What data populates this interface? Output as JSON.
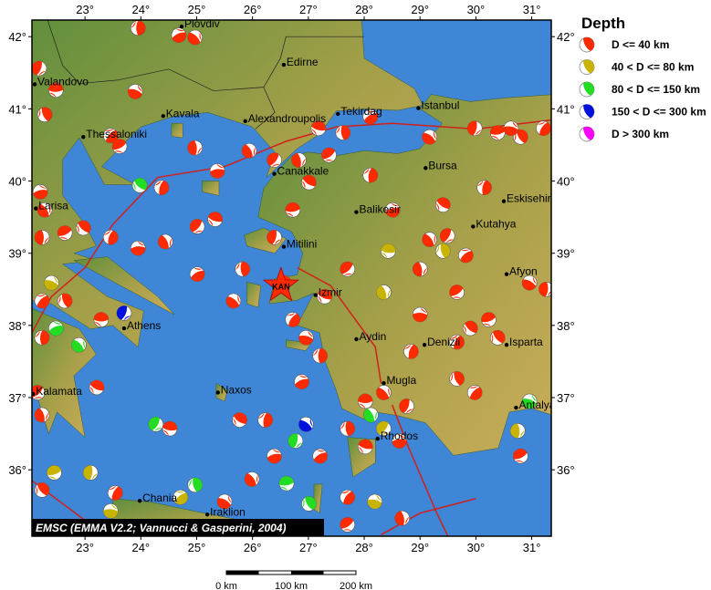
{
  "map": {
    "lon_range": [
      22.05,
      31.35
    ],
    "lat_range": [
      35.08,
      42.23
    ],
    "lon_ticks": [
      23,
      24,
      25,
      26,
      27,
      28,
      29,
      30,
      31
    ],
    "lat_ticks": [
      36,
      37,
      38,
      39,
      40,
      41,
      42
    ],
    "tick_suffix": "°",
    "colors": {
      "sea": "#3f86d6",
      "land_low": "#5f8f3c",
      "land_high": "#c9ad5a",
      "fault": "#d0201a",
      "border": "#222222"
    }
  },
  "legend": {
    "title": "Depth",
    "items": [
      {
        "label": "D <= 40 km",
        "color": "#ff2a00"
      },
      {
        "label": "40 < D <= 80 km",
        "color": "#c8b400"
      },
      {
        "label": "80 < D <= 150 km",
        "color": "#22dd22"
      },
      {
        "label": "150 < D <= 300 km",
        "color": "#0010dd"
      },
      {
        "label": "D > 300 km",
        "color": "#ff00ff"
      }
    ]
  },
  "caption": "EMSC (EMMA V2.2; Vannucci & Gasperini, 2004)",
  "scale_bar": {
    "labels": [
      "0 km",
      "100 km",
      "200 km"
    ]
  },
  "epicenter": {
    "label": "KAN",
    "lon": 26.51,
    "lat": 38.55,
    "color": "#ff2a00"
  },
  "cities": [
    {
      "name": "Plovdiv",
      "lon": 24.73,
      "lat": 42.14
    },
    {
      "name": "Edirne",
      "lon": 26.56,
      "lat": 41.61
    },
    {
      "name": "Valandovo",
      "lon": 22.1,
      "lat": 41.34
    },
    {
      "name": "Kavala",
      "lon": 24.4,
      "lat": 40.9
    },
    {
      "name": "Alexandroupolis",
      "lon": 25.87,
      "lat": 40.83
    },
    {
      "name": "Tekirdag",
      "lon": 27.53,
      "lat": 40.93
    },
    {
      "name": "Istanbul",
      "lon": 28.97,
      "lat": 41.01
    },
    {
      "name": "Thessaloniki",
      "lon": 22.97,
      "lat": 40.61
    },
    {
      "name": "Bursa",
      "lon": 29.1,
      "lat": 40.18
    },
    {
      "name": "Canakkale",
      "lon": 26.39,
      "lat": 40.1
    },
    {
      "name": "Eskisehir",
      "lon": 30.5,
      "lat": 39.72
    },
    {
      "name": "Larisa",
      "lon": 22.12,
      "lat": 39.62
    },
    {
      "name": "Balikesir",
      "lon": 27.86,
      "lat": 39.57
    },
    {
      "name": "Kutahya",
      "lon": 29.95,
      "lat": 39.37
    },
    {
      "name": "Mitilini",
      "lon": 26.56,
      "lat": 39.09
    },
    {
      "name": "Afyon",
      "lon": 30.55,
      "lat": 38.71
    },
    {
      "name": "Izmir",
      "lon": 27.13,
      "lat": 38.42
    },
    {
      "name": "Athens",
      "lon": 23.7,
      "lat": 37.96
    },
    {
      "name": "Aydin",
      "lon": 27.86,
      "lat": 37.81
    },
    {
      "name": "Denizli",
      "lon": 29.08,
      "lat": 37.73
    },
    {
      "name": "Isparta",
      "lon": 30.55,
      "lat": 37.73
    },
    {
      "name": "Mugla",
      "lon": 28.35,
      "lat": 37.2
    },
    {
      "name": "Naxos",
      "lon": 25.38,
      "lat": 37.07
    },
    {
      "name": "Kalamata",
      "lon": 22.07,
      "lat": 37.05
    },
    {
      "name": "Antalya",
      "lon": 30.72,
      "lat": 36.86
    },
    {
      "name": "Rhodos",
      "lon": 28.24,
      "lat": 36.43
    },
    {
      "name": "Chania",
      "lon": 23.98,
      "lat": 35.57
    },
    {
      "name": "Iraklion",
      "lon": 25.19,
      "lat": 35.38
    }
  ],
  "events": [
    [
      23.95,
      42.12,
      1
    ],
    [
      24.68,
      42.02,
      1
    ],
    [
      24.97,
      41.99,
      1
    ],
    [
      22.18,
      41.56,
      1
    ],
    [
      22.48,
      41.26,
      1
    ],
    [
      22.28,
      40.92,
      1
    ],
    [
      23.46,
      40.63,
      1
    ],
    [
      23.9,
      41.24,
      1
    ],
    [
      24.97,
      40.46,
      1
    ],
    [
      23.62,
      40.48,
      1
    ],
    [
      23.98,
      39.94,
      3
    ],
    [
      24.37,
      39.91,
      1
    ],
    [
      25.37,
      40.14,
      1
    ],
    [
      25.94,
      40.42,
      1
    ],
    [
      26.39,
      40.29,
      1
    ],
    [
      27.18,
      40.73,
      1
    ],
    [
      27.62,
      40.67,
      1
    ],
    [
      28.11,
      40.89,
      1
    ],
    [
      29.17,
      40.61,
      1
    ],
    [
      29.98,
      40.73,
      1
    ],
    [
      30.39,
      40.67,
      1
    ],
    [
      30.8,
      40.61,
      1
    ],
    [
      31.21,
      40.73,
      1
    ],
    [
      30.63,
      40.73,
      1
    ],
    [
      26.83,
      40.29,
      1
    ],
    [
      27.37,
      40.36,
      1
    ],
    [
      27.01,
      39.98,
      1
    ],
    [
      28.11,
      40.08,
      1
    ],
    [
      28.51,
      39.6,
      1
    ],
    [
      29.17,
      39.19,
      1
    ],
    [
      29.49,
      39.24,
      1
    ],
    [
      28.43,
      39.03,
      2
    ],
    [
      29.41,
      39.03,
      2
    ],
    [
      29.82,
      38.97,
      1
    ],
    [
      30.96,
      38.59,
      1
    ],
    [
      31.26,
      38.5,
      1
    ],
    [
      30.23,
      38.08,
      1
    ],
    [
      30.39,
      37.83,
      1
    ],
    [
      29.66,
      37.77,
      1
    ],
    [
      29.0,
      38.15,
      1
    ],
    [
      28.35,
      38.46,
      2
    ],
    [
      27.7,
      38.78,
      1
    ],
    [
      27.29,
      38.4,
      1
    ],
    [
      27.21,
      37.58,
      1
    ],
    [
      26.88,
      37.22,
      1
    ],
    [
      28.35,
      37.07,
      1
    ],
    [
      28.76,
      36.88,
      1
    ],
    [
      28.02,
      36.95,
      1
    ],
    [
      29.66,
      37.26,
      1
    ],
    [
      29.98,
      37.07,
      1
    ],
    [
      30.96,
      36.95,
      3
    ],
    [
      30.75,
      36.54,
      2
    ],
    [
      30.8,
      36.19,
      1
    ],
    [
      29.9,
      37.96,
      1
    ],
    [
      28.84,
      37.64,
      1
    ],
    [
      28.63,
      36.4,
      1
    ],
    [
      28.12,
      36.76,
      3
    ],
    [
      28.35,
      36.57,
      2
    ],
    [
      28.02,
      36.32,
      1
    ],
    [
      27.7,
      36.57,
      1
    ],
    [
      27.21,
      36.19,
      1
    ],
    [
      26.96,
      36.63,
      4
    ],
    [
      26.77,
      36.4,
      3
    ],
    [
      26.61,
      35.81,
      3
    ],
    [
      27.01,
      35.53,
      3
    ],
    [
      27.7,
      35.62,
      1
    ],
    [
      28.19,
      35.56,
      2
    ],
    [
      28.68,
      35.33,
      1
    ],
    [
      27.7,
      35.24,
      1
    ],
    [
      25.77,
      36.69,
      1
    ],
    [
      26.23,
      36.69,
      1
    ],
    [
      26.39,
      36.19,
      1
    ],
    [
      25.99,
      35.87,
      1
    ],
    [
      24.27,
      36.63,
      3
    ],
    [
      24.52,
      36.57,
      1
    ],
    [
      24.97,
      35.79,
      3
    ],
    [
      24.71,
      35.62,
      2
    ],
    [
      25.5,
      35.56,
      1
    ],
    [
      23.1,
      35.96,
      2
    ],
    [
      22.45,
      35.96,
      2
    ],
    [
      22.23,
      35.72,
      1
    ],
    [
      23.54,
      35.68,
      1
    ],
    [
      23.46,
      35.43,
      2
    ],
    [
      22.23,
      36.76,
      1
    ],
    [
      22.15,
      37.07,
      1
    ],
    [
      23.21,
      37.14,
      1
    ],
    [
      22.23,
      37.83,
      1
    ],
    [
      22.48,
      37.96,
      3
    ],
    [
      22.89,
      37.73,
      3
    ],
    [
      23.7,
      38.17,
      4
    ],
    [
      23.29,
      38.08,
      1
    ],
    [
      22.64,
      38.34,
      1
    ],
    [
      22.23,
      38.34,
      1
    ],
    [
      22.4,
      38.59,
      2
    ],
    [
      22.23,
      39.22,
      1
    ],
    [
      22.64,
      39.28,
      1
    ],
    [
      22.97,
      39.35,
      1
    ],
    [
      23.46,
      39.22,
      1
    ],
    [
      23.95,
      39.07,
      1
    ],
    [
      24.44,
      39.16,
      1
    ],
    [
      25.01,
      39.37,
      1
    ],
    [
      25.33,
      39.47,
      1
    ],
    [
      25.82,
      38.78,
      1
    ],
    [
      25.01,
      38.71,
      1
    ],
    [
      25.66,
      38.34,
      1
    ],
    [
      26.39,
      39.22,
      1
    ],
    [
      26.72,
      39.6,
      1
    ],
    [
      26.56,
      38.59,
      1
    ],
    [
      26.72,
      38.08,
      1
    ],
    [
      26.96,
      37.83,
      1
    ],
    [
      29.0,
      38.78,
      1
    ],
    [
      29.66,
      38.46,
      1
    ],
    [
      29.41,
      39.67,
      1
    ],
    [
      30.15,
      39.91,
      1
    ],
    [
      22.2,
      39.85,
      1
    ],
    [
      22.28,
      39.6,
      1
    ]
  ]
}
